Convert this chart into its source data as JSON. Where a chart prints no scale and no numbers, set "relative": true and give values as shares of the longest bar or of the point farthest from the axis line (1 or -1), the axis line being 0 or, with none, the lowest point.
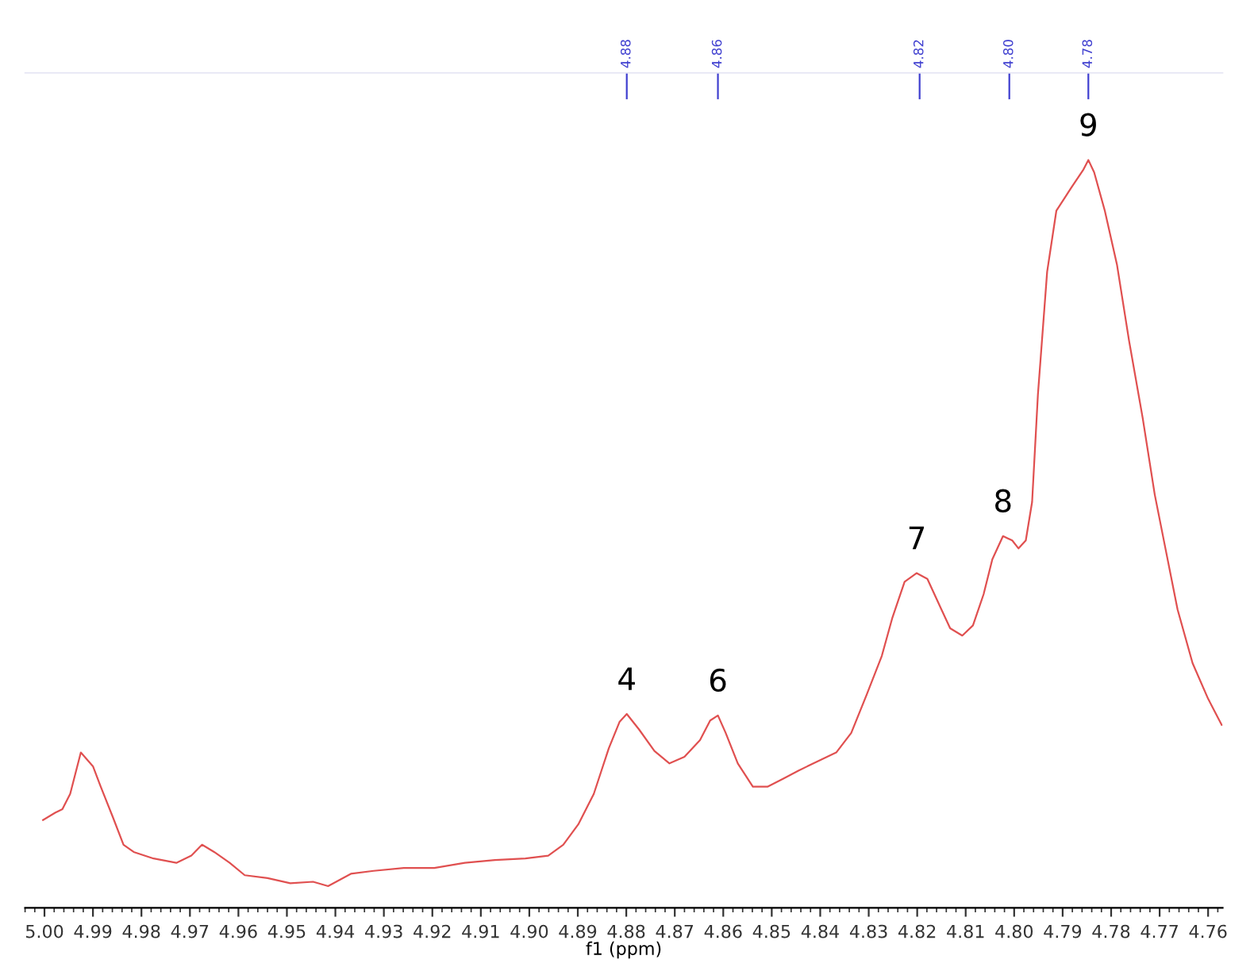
{
  "chart_data": {
    "type": "line",
    "relative": true,
    "xlabel": "f1 (ppm)",
    "xlim": [
      5.004,
      4.757
    ],
    "xticks": [
      {
        "value": 5.0,
        "label": "5.00"
      },
      4.99,
      4.98,
      4.97,
      4.96,
      4.95,
      4.94,
      4.93,
      4.92,
      4.91,
      {
        "value": 4.9,
        "label": "4.90"
      },
      4.89,
      4.88,
      4.87,
      4.86,
      4.85,
      4.84,
      4.83,
      4.82,
      4.81,
      {
        "value": 4.8,
        "label": "4.80"
      },
      4.79,
      4.78,
      4.77,
      4.76
    ],
    "x2lim": [
      5.004,
      4.757
    ],
    "x2ticks": [
      {
        "value": 4.8799,
        "label": "4.88"
      },
      {
        "value": 4.8611,
        "label": "4.86"
      },
      {
        "value": 4.8195,
        "label": "4.82"
      },
      {
        "value": 4.801,
        "label": "4.80"
      },
      {
        "value": 4.7847,
        "label": "4.78"
      }
    ],
    "grid": false,
    "legend": false,
    "series": [
      {
        "color": "#e05050",
        "x": [
          5.0003,
          4.9978,
          4.9963,
          4.9947,
          4.9925,
          4.99,
          4.9884,
          4.9859,
          4.9837,
          4.9816,
          4.9775,
          4.9728,
          4.9697,
          4.9675,
          4.965,
          4.9618,
          4.9587,
          4.954,
          4.9493,
          4.9446,
          4.9415,
          4.9368,
          4.9321,
          4.9259,
          4.9196,
          4.9133,
          4.9071,
          4.9008,
          4.8961,
          4.893,
          4.8899,
          4.8867,
          4.8836,
          4.8814,
          4.8799,
          4.8774,
          4.8742,
          4.8711,
          4.868,
          4.8648,
          4.8627,
          4.8611,
          4.8595,
          4.857,
          4.8539,
          4.8508,
          4.8476,
          4.8445,
          4.8414,
          4.8367,
          4.8336,
          4.8304,
          4.8273,
          4.8251,
          4.8226,
          4.8201,
          4.8179,
          4.8157,
          4.8132,
          4.8107,
          4.8085,
          4.8063,
          4.8045,
          4.8023,
          4.8004,
          4.7991,
          4.7976,
          4.7963,
          4.7951,
          4.7932,
          4.7913,
          4.7882,
          4.7857,
          4.7847,
          4.7835,
          4.7813,
          4.7788,
          4.7763,
          4.7735,
          4.771,
          4.7688,
          4.7663,
          4.7632,
          4.76,
          4.7572
        ],
        "values": [
          0.091,
          0.101,
          0.106,
          0.127,
          0.184,
          0.165,
          0.137,
          0.095,
          0.057,
          0.047,
          0.038,
          0.032,
          0.042,
          0.057,
          0.047,
          0.032,
          0.015,
          0.011,
          0.004,
          0.006,
          0.0,
          0.017,
          0.021,
          0.025,
          0.025,
          0.032,
          0.036,
          0.038,
          0.042,
          0.057,
          0.085,
          0.127,
          0.19,
          0.226,
          0.237,
          0.216,
          0.186,
          0.169,
          0.178,
          0.201,
          0.228,
          0.235,
          0.211,
          0.169,
          0.137,
          0.137,
          0.148,
          0.159,
          0.169,
          0.184,
          0.211,
          0.264,
          0.317,
          0.37,
          0.419,
          0.431,
          0.423,
          0.391,
          0.355,
          0.345,
          0.359,
          0.402,
          0.45,
          0.482,
          0.476,
          0.465,
          0.476,
          0.529,
          0.677,
          0.846,
          0.93,
          0.962,
          0.987,
          1.0,
          0.983,
          0.93,
          0.856,
          0.751,
          0.645,
          0.539,
          0.465,
          0.381,
          0.307,
          0.258,
          0.222
        ]
      }
    ],
    "annotations": [
      {
        "text": "4",
        "x": 4.8799,
        "y": 0.237
      },
      {
        "text": "6",
        "x": 4.8611,
        "y": 0.235
      },
      {
        "text": "7",
        "x": 4.8201,
        "y": 0.431
      },
      {
        "text": "8",
        "x": 4.8023,
        "y": 0.482
      },
      {
        "text": "9",
        "x": 4.7847,
        "y": 1.0
      }
    ]
  }
}
